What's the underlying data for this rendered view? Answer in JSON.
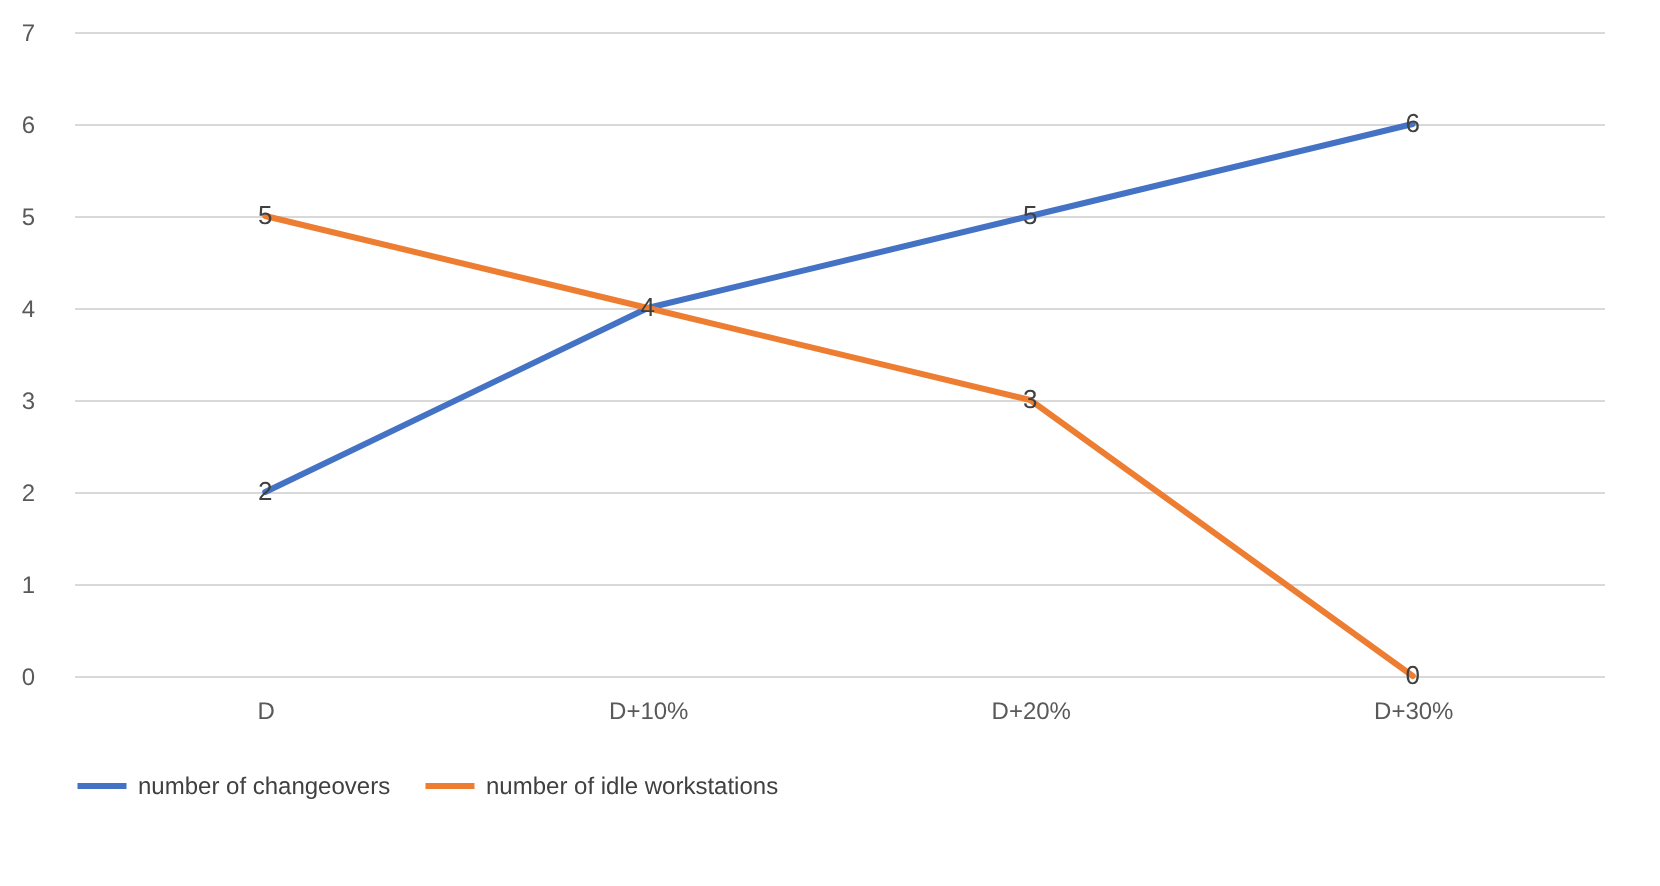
{
  "chart_data": {
    "type": "line",
    "categories": [
      "D",
      "D+10%",
      "D+20%",
      "D+30%"
    ],
    "series": [
      {
        "name": "number of changeovers",
        "color": "#4472c4",
        "values": [
          2,
          4,
          5,
          6
        ]
      },
      {
        "name": "number of idle workstations",
        "color": "#ed7d31",
        "values": [
          5,
          4,
          3,
          0
        ],
        "value_labels": [
          "5",
          null,
          "3",
          "0"
        ]
      }
    ],
    "ylim": [
      0,
      7
    ],
    "yticks": [
      0,
      1,
      2,
      3,
      4,
      5,
      6,
      7
    ],
    "grid": "y",
    "legend": "bottom",
    "data_labels": true,
    "marker": "none",
    "line_style": "solid"
  }
}
